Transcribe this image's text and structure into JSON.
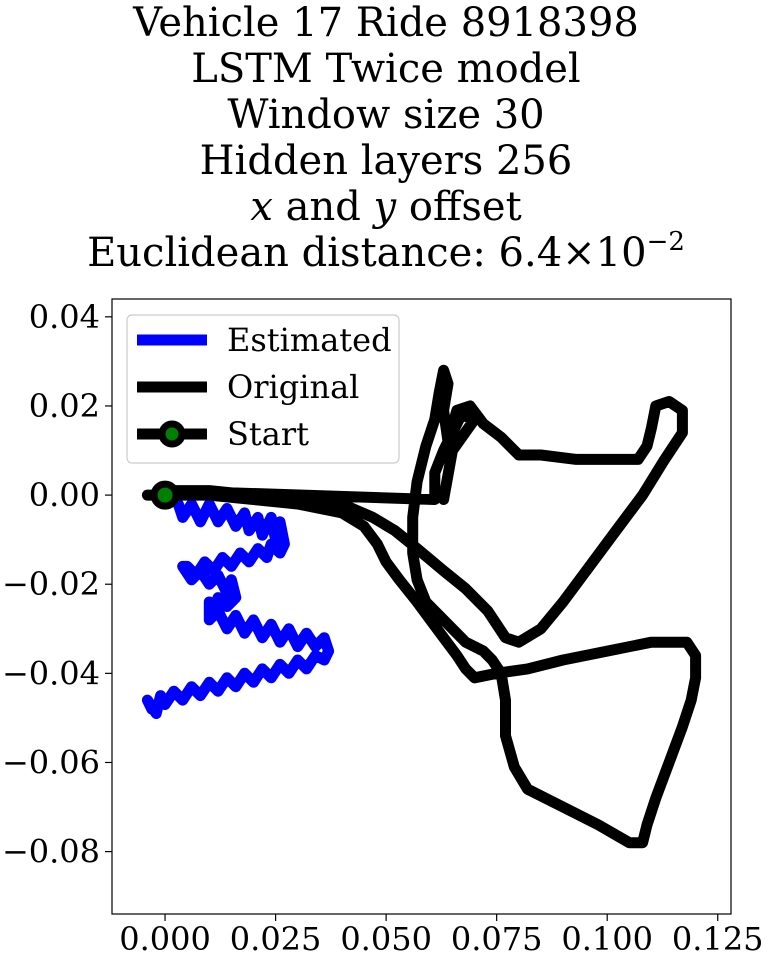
{
  "chart_data": {
    "type": "line",
    "title_lines": [
      "Vehicle 17 Ride 8918398",
      "LSTM Twice model",
      "Window size 30",
      "Hidden layers 256",
      "x and y offset",
      "Euclidean distance: 6.4 × 10−2"
    ],
    "title_math": {
      "var_x": "x",
      "var_y": "y",
      "offset_word": "offset",
      "and_word": "and",
      "distance_prefix": "Euclidean distance: ",
      "distance_mantissa": "6.4",
      "distance_times": "×",
      "distance_base": "10",
      "distance_exponent": "−2"
    },
    "xlabel": "",
    "ylabel": "",
    "xlim": [
      -0.012,
      0.128
    ],
    "ylim": [
      -0.094,
      0.044
    ],
    "xticks": [
      0.0,
      0.025,
      0.05,
      0.075,
      0.1,
      0.125
    ],
    "xtick_labels": [
      "0.000",
      "0.025",
      "0.050",
      "0.075",
      "0.100",
      "0.125"
    ],
    "yticks": [
      0.04,
      0.02,
      0.0,
      -0.02,
      -0.04,
      -0.06,
      -0.08
    ],
    "ytick_labels": [
      "0.04",
      "0.02",
      "0.00",
      "−0.02",
      "−0.04",
      "−0.06",
      "−0.08"
    ],
    "grid": false,
    "legend_position": "top-left",
    "legend": [
      {
        "label": "Estimated",
        "color": "#0000ff",
        "marker": "none"
      },
      {
        "label": "Original",
        "color": "#000000",
        "marker": "none"
      },
      {
        "label": "Start",
        "color": "#000000",
        "marker": "circle",
        "marker_face": "#008000"
      }
    ],
    "series": [
      {
        "name": "Estimated",
        "color": "#0000ff",
        "points": [
          [
            0.0,
            0.0
          ],
          [
            0.003,
            -0.002
          ],
          [
            0.004,
            -0.005
          ],
          [
            0.006,
            -0.002
          ],
          [
            0.008,
            -0.006
          ],
          [
            0.01,
            -0.002
          ],
          [
            0.012,
            -0.006
          ],
          [
            0.014,
            -0.003
          ],
          [
            0.016,
            -0.007
          ],
          [
            0.018,
            -0.004
          ],
          [
            0.019,
            -0.008
          ],
          [
            0.021,
            -0.005
          ],
          [
            0.022,
            -0.009
          ],
          [
            0.024,
            -0.005
          ],
          [
            0.025,
            -0.01
          ],
          [
            0.026,
            -0.006
          ],
          [
            0.027,
            -0.011
          ],
          [
            0.026,
            -0.013
          ],
          [
            0.024,
            -0.011
          ],
          [
            0.023,
            -0.014
          ],
          [
            0.021,
            -0.012
          ],
          [
            0.019,
            -0.015
          ],
          [
            0.017,
            -0.013
          ],
          [
            0.015,
            -0.016
          ],
          [
            0.013,
            -0.014
          ],
          [
            0.011,
            -0.017
          ],
          [
            0.009,
            -0.015
          ],
          [
            0.007,
            -0.018
          ],
          [
            0.005,
            -0.016
          ],
          [
            0.004,
            -0.016
          ],
          [
            0.006,
            -0.019
          ],
          [
            0.008,
            -0.017
          ],
          [
            0.01,
            -0.02
          ],
          [
            0.012,
            -0.018
          ],
          [
            0.014,
            -0.022
          ],
          [
            0.015,
            -0.019
          ],
          [
            0.016,
            -0.023
          ],
          [
            0.014,
            -0.025
          ],
          [
            0.012,
            -0.023
          ],
          [
            0.011,
            -0.026
          ],
          [
            0.01,
            -0.024
          ],
          [
            0.01,
            -0.028
          ],
          [
            0.012,
            -0.026
          ],
          [
            0.014,
            -0.03
          ],
          [
            0.016,
            -0.027
          ],
          [
            0.018,
            -0.031
          ],
          [
            0.02,
            -0.028
          ],
          [
            0.022,
            -0.032
          ],
          [
            0.024,
            -0.029
          ],
          [
            0.026,
            -0.033
          ],
          [
            0.028,
            -0.03
          ],
          [
            0.03,
            -0.034
          ],
          [
            0.032,
            -0.031
          ],
          [
            0.034,
            -0.034
          ],
          [
            0.036,
            -0.032
          ],
          [
            0.037,
            -0.035
          ],
          [
            0.036,
            -0.037
          ],
          [
            0.034,
            -0.036
          ],
          [
            0.032,
            -0.039
          ],
          [
            0.03,
            -0.037
          ],
          [
            0.028,
            -0.04
          ],
          [
            0.026,
            -0.038
          ],
          [
            0.024,
            -0.041
          ],
          [
            0.022,
            -0.039
          ],
          [
            0.02,
            -0.042
          ],
          [
            0.018,
            -0.04
          ],
          [
            0.016,
            -0.043
          ],
          [
            0.014,
            -0.041
          ],
          [
            0.012,
            -0.044
          ],
          [
            0.01,
            -0.042
          ],
          [
            0.008,
            -0.045
          ],
          [
            0.006,
            -0.043
          ],
          [
            0.004,
            -0.046
          ],
          [
            0.002,
            -0.044
          ],
          [
            0.0,
            -0.047
          ],
          [
            -0.001,
            -0.045
          ],
          [
            -0.002,
            -0.049
          ],
          [
            -0.004,
            -0.046
          ],
          [
            -0.003,
            -0.048
          ]
        ]
      },
      {
        "name": "Original",
        "color": "#000000",
        "points": [
          [
            -0.004,
            0.0
          ],
          [
            0.0,
            0.0
          ],
          [
            0.01,
            0.0
          ],
          [
            0.02,
            -0.001
          ],
          [
            0.03,
            -0.002
          ],
          [
            0.04,
            -0.004
          ],
          [
            0.045,
            -0.007
          ],
          [
            0.048,
            -0.011
          ],
          [
            0.05,
            -0.015
          ],
          [
            0.053,
            -0.019
          ],
          [
            0.057,
            -0.024
          ],
          [
            0.06,
            -0.028
          ],
          [
            0.063,
            -0.032
          ],
          [
            0.066,
            -0.036
          ],
          [
            0.068,
            -0.039
          ],
          [
            0.07,
            -0.041
          ],
          [
            0.075,
            -0.04
          ],
          [
            0.082,
            -0.039
          ],
          [
            0.09,
            -0.037
          ],
          [
            0.1,
            -0.035
          ],
          [
            0.11,
            -0.033
          ],
          [
            0.118,
            -0.033
          ],
          [
            0.12,
            -0.036
          ],
          [
            0.12,
            -0.041
          ],
          [
            0.119,
            -0.046
          ],
          [
            0.117,
            -0.052
          ],
          [
            0.114,
            -0.06
          ],
          [
            0.111,
            -0.068
          ],
          [
            0.109,
            -0.074
          ],
          [
            0.108,
            -0.078
          ],
          [
            0.105,
            -0.078
          ],
          [
            0.098,
            -0.074
          ],
          [
            0.09,
            -0.07
          ],
          [
            0.082,
            -0.066
          ],
          [
            0.079,
            -0.061
          ],
          [
            0.077,
            -0.054
          ],
          [
            0.077,
            -0.046
          ],
          [
            0.076,
            -0.04
          ],
          [
            0.074,
            -0.037
          ],
          [
            0.072,
            -0.035
          ],
          [
            0.068,
            -0.033
          ],
          [
            0.063,
            -0.028
          ],
          [
            0.059,
            -0.024
          ],
          [
            0.057,
            -0.019
          ],
          [
            0.056,
            -0.013
          ],
          [
            0.056,
            -0.005
          ],
          [
            0.057,
            0.003
          ],
          [
            0.059,
            0.011
          ],
          [
            0.061,
            0.017
          ],
          [
            0.062,
            0.023
          ],
          [
            0.063,
            0.028
          ],
          [
            0.064,
            0.025
          ],
          [
            0.063,
            0.019
          ],
          [
            0.064,
            0.012
          ],
          [
            0.066,
            0.019
          ],
          [
            0.069,
            0.02
          ],
          [
            0.072,
            0.016
          ],
          [
            0.076,
            0.013
          ],
          [
            0.08,
            0.009
          ],
          [
            0.085,
            0.009
          ],
          [
            0.093,
            0.008
          ],
          [
            0.1,
            0.008
          ],
          [
            0.107,
            0.008
          ],
          [
            0.109,
            0.011
          ],
          [
            0.11,
            0.015
          ],
          [
            0.111,
            0.02
          ],
          [
            0.114,
            0.021
          ],
          [
            0.117,
            0.019
          ],
          [
            0.117,
            0.014
          ],
          [
            0.113,
            0.008
          ],
          [
            0.108,
            0.0
          ],
          [
            0.102,
            -0.008
          ],
          [
            0.096,
            -0.016
          ],
          [
            0.09,
            -0.024
          ],
          [
            0.085,
            -0.03
          ],
          [
            0.08,
            -0.033
          ],
          [
            0.077,
            -0.032
          ],
          [
            0.073,
            -0.026
          ],
          [
            0.068,
            -0.021
          ],
          [
            0.063,
            -0.017
          ],
          [
            0.057,
            -0.012
          ],
          [
            0.052,
            -0.008
          ],
          [
            0.047,
            -0.005
          ],
          [
            0.04,
            -0.002
          ],
          [
            0.03,
            0.0
          ],
          [
            0.02,
            0.0
          ],
          [
            0.01,
            0.001
          ],
          [
            0.0,
            0.001
          ],
          [
            0.061,
            -0.001
          ],
          [
            0.061,
            0.005
          ],
          [
            0.063,
            0.01
          ],
          [
            0.067,
            0.018
          ],
          [
            0.07,
            0.017
          ],
          [
            0.065,
            0.01
          ],
          [
            0.063,
            -0.001
          ]
        ]
      }
    ],
    "start_point": {
      "name": "Start",
      "x": 0.0,
      "y": 0.0,
      "edge_color": "#000000",
      "face_color": "#008000"
    }
  }
}
